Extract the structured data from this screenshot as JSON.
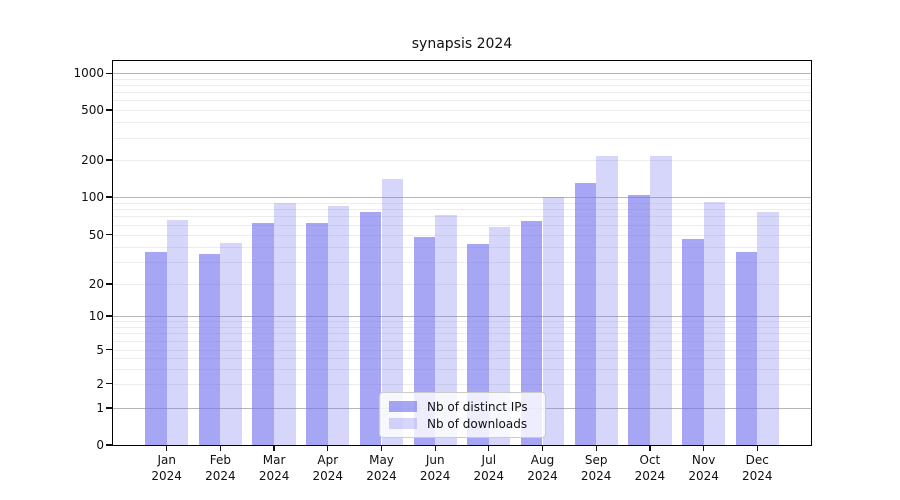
{
  "title": "synapsis 2024",
  "colors": {
    "background": "#ffffff",
    "bar_base": "#7777ee",
    "bar_ips_rgba": "rgba(119,119,238,0.65)",
    "bar_downloads_rgba": "rgba(119,119,238,0.30)",
    "grid_major": "#b6b6b6",
    "grid_minor": "#ececec",
    "axis": "#000000"
  },
  "legend": {
    "items": [
      {
        "label": "Nb of distinct IPs"
      },
      {
        "label": "Nb of downloads"
      }
    ]
  },
  "chart_data": {
    "type": "bar",
    "title": "synapsis 2024",
    "categories": [
      "Jan 2024",
      "Feb 2024",
      "Mar 2024",
      "Apr 2024",
      "May 2024",
      "Jun 2024",
      "Jul 2024",
      "Aug 2024",
      "Sep 2024",
      "Oct 2024",
      "Nov 2024",
      "Dec 2024"
    ],
    "series": [
      {
        "name": "Nb of distinct IPs",
        "color": "rgba(119,119,238,0.65)",
        "values": [
          36,
          35,
          62,
          62,
          76,
          48,
          42,
          64,
          129,
          104,
          46,
          36
        ]
      },
      {
        "name": "Nb of downloads",
        "color": "rgba(119,119,238,0.30)",
        "values": [
          66,
          43,
          90,
          84,
          140,
          72,
          58,
          100,
          215,
          215,
          92,
          76
        ]
      }
    ],
    "xlabel": "",
    "ylabel": "",
    "yticks": [
      1000,
      500,
      200,
      100,
      50,
      20,
      10,
      5,
      2,
      1,
      0
    ],
    "yscale": "log-like (ticks 0,1,2,5,10,20,50,100,200,500,1000)",
    "ylim": [
      0,
      1260
    ],
    "grid": true,
    "legend_position": "lower center"
  }
}
